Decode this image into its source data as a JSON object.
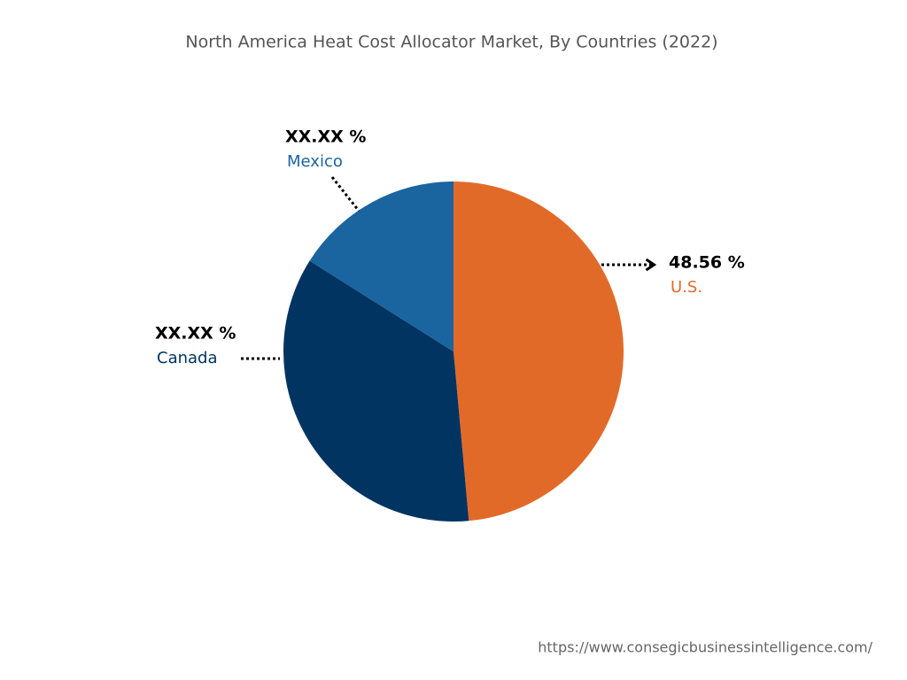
{
  "chart_data": {
    "type": "pie",
    "title": "North America Heat Cost Allocator Market, By Countries (2022)",
    "categories": [
      "U.S.",
      "Canada",
      "Mexico"
    ],
    "values": [
      48.56,
      35.4,
      16.04
    ],
    "value_labels": [
      "48.56 %",
      "XX.XX %",
      "XX.XX %"
    ],
    "colors": [
      "#e26a28",
      "#023462",
      "#1a64a0"
    ],
    "source": "https://www.consegicbusinessintelligence.com/"
  }
}
